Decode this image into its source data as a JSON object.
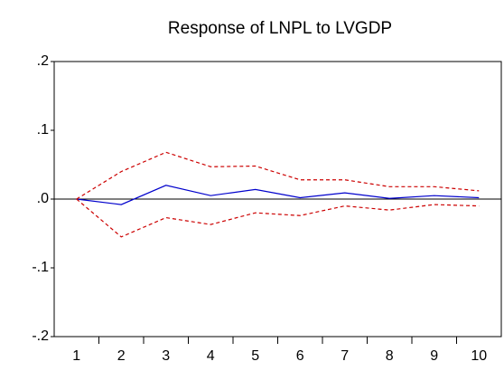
{
  "chart_data": {
    "type": "line",
    "title": "Response of LNPL to LVGDP",
    "categories": [
      "1",
      "2",
      "3",
      "4",
      "5",
      "6",
      "7",
      "8",
      "9",
      "10"
    ],
    "series": [
      {
        "color": "#0000cc",
        "style": "solid",
        "values": [
          0,
          -0.008,
          0.02,
          0.005,
          0.014,
          0.002,
          0.009,
          0.001,
          0.005,
          0.002
        ]
      },
      {
        "color": "#cc0000",
        "style": "dashed",
        "values": [
          0,
          0.04,
          0.068,
          0.047,
          0.048,
          0.028,
          0.028,
          0.018,
          0.018,
          0.012
        ]
      },
      {
        "color": "#cc0000",
        "style": "dashed",
        "values": [
          0,
          -0.055,
          -0.027,
          -0.037,
          -0.02,
          -0.024,
          -0.01,
          -0.016,
          -0.008,
          -0.01
        ]
      }
    ],
    "ylim": [
      -0.2,
      0.2
    ],
    "yticks": [
      {
        "value": 0.2,
        "label": ".2"
      },
      {
        "value": 0.1,
        "label": ".1"
      },
      {
        "value": 0,
        "label": ".0"
      },
      {
        "value": -0.1,
        "label": "-.1"
      },
      {
        "value": -0.2,
        "label": "-.2"
      }
    ],
    "zero_line": true
  }
}
